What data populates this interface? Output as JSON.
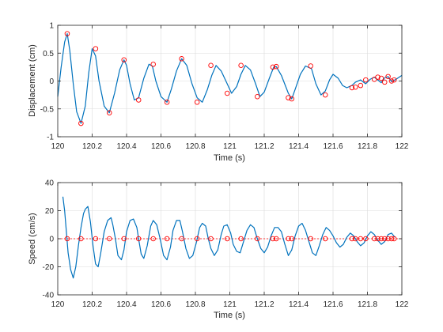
{
  "colors": {
    "line": "#0072bd",
    "marker": "#ff0000",
    "zero_line": "#ff0000",
    "grid": "#dcdcdc",
    "axis": "#262626",
    "background": "#ffffff"
  },
  "chart_data": [
    {
      "type": "line",
      "xlabel": "Time (s)",
      "ylabel": "Displacement (cm)",
      "xlim": [
        120,
        122
      ],
      "ylim": [
        -1,
        1
      ],
      "grid": true,
      "x_ticks": [
        120,
        120.2,
        120.4,
        120.6,
        120.8,
        121,
        121.2,
        121.4,
        121.6,
        121.8,
        122
      ],
      "x_tick_labels": [
        "120",
        "120.2",
        "120.4",
        "120.6",
        "120.8",
        "121",
        "121.2",
        "121.4",
        "121.6",
        "121.8",
        "122"
      ],
      "y_ticks": [
        -1,
        -0.5,
        0,
        0.5,
        1
      ],
      "y_tick_labels": [
        "-1",
        "-0.5",
        "0",
        "0.5",
        "1"
      ],
      "series": [
        {
          "style": "line",
          "x": [
            120.0,
            120.02,
            120.04,
            120.055,
            120.07,
            120.09,
            120.11,
            120.135,
            120.16,
            120.18,
            120.2,
            120.22,
            120.24,
            120.27,
            120.3,
            120.33,
            120.36,
            120.385,
            120.4,
            120.42,
            120.445,
            120.47,
            120.5,
            120.53,
            120.55,
            120.57,
            120.6,
            120.635,
            120.66,
            120.69,
            120.72,
            120.75,
            120.78,
            120.81,
            120.84,
            120.87,
            120.895,
            120.92,
            120.95,
            120.985,
            121.01,
            121.04,
            121.065,
            121.09,
            121.12,
            121.15,
            121.175,
            121.2,
            121.23,
            121.255,
            121.27,
            121.3,
            121.34,
            121.36,
            121.38,
            121.41,
            121.44,
            121.475,
            121.5,
            121.53,
            121.555,
            121.58,
            121.6,
            121.63,
            121.655,
            121.68,
            121.71,
            121.73,
            121.76,
            121.79,
            121.815,
            121.84,
            121.86,
            121.88,
            121.9,
            121.92,
            121.94,
            121.96,
            121.98,
            122.0
          ],
          "y": [
            -0.28,
            0.25,
            0.7,
            0.85,
            0.55,
            -0.05,
            -0.55,
            -0.76,
            -0.45,
            0.15,
            0.58,
            0.45,
            0.0,
            -0.45,
            -0.57,
            -0.22,
            0.2,
            0.38,
            0.28,
            -0.05,
            -0.34,
            -0.3,
            0.05,
            0.3,
            0.27,
            0.0,
            -0.28,
            -0.38,
            -0.15,
            0.18,
            0.4,
            0.28,
            -0.05,
            -0.3,
            -0.38,
            -0.15,
            0.1,
            0.28,
            0.18,
            -0.05,
            -0.22,
            -0.1,
            0.12,
            0.28,
            0.2,
            -0.05,
            -0.28,
            -0.2,
            0.05,
            0.25,
            0.26,
            0.1,
            -0.22,
            -0.32,
            -0.15,
            0.12,
            0.27,
            0.22,
            -0.05,
            -0.25,
            -0.18,
            0.02,
            0.12,
            0.05,
            -0.08,
            -0.12,
            -0.08,
            -0.02,
            0.02,
            -0.05,
            0.03,
            0.07,
            0.02,
            -0.03,
            0.06,
            0.08,
            -0.01,
            0.02,
            0.06,
            0.1
          ]
        },
        {
          "style": "markers",
          "x": [
            120.055,
            120.135,
            120.22,
            120.3,
            120.385,
            120.47,
            120.555,
            120.635,
            120.72,
            120.81,
            120.89,
            120.985,
            121.065,
            121.16,
            121.25,
            121.27,
            121.34,
            121.36,
            121.47,
            121.555,
            121.71,
            121.73,
            121.76,
            121.79,
            121.84,
            121.86,
            121.88,
            121.9,
            121.92,
            121.94,
            121.955
          ],
          "y": [
            0.85,
            -0.76,
            0.58,
            -0.57,
            0.38,
            -0.34,
            0.3,
            -0.38,
            0.4,
            -0.38,
            0.28,
            -0.22,
            0.28,
            -0.28,
            0.25,
            0.26,
            -0.3,
            -0.32,
            0.27,
            -0.25,
            -0.12,
            -0.11,
            -0.08,
            0.02,
            0.03,
            0.07,
            0.05,
            -0.02,
            0.08,
            0.0,
            0.02
          ]
        }
      ]
    },
    {
      "type": "line",
      "xlabel": "Time (s)",
      "ylabel": "Speed (cm/s)",
      "xlim": [
        120,
        122
      ],
      "ylim": [
        -40,
        40
      ],
      "grid": true,
      "x_ticks": [
        120,
        120.2,
        120.4,
        120.6,
        120.8,
        121,
        121.2,
        121.4,
        121.6,
        121.8,
        122
      ],
      "x_tick_labels": [
        "120",
        "120.2",
        "120.4",
        "120.6",
        "120.8",
        "121",
        "121.2",
        "121.4",
        "121.6",
        "121.8",
        "122"
      ],
      "y_ticks": [
        -40,
        -20,
        0,
        20,
        40
      ],
      "y_tick_labels": [
        "-40",
        "-20",
        "0",
        "20",
        "40"
      ],
      "series": [
        {
          "style": "line",
          "x": [
            120.03,
            120.04,
            120.05,
            120.06,
            120.075,
            120.09,
            120.105,
            120.12,
            120.135,
            120.15,
            120.16,
            120.175,
            120.19,
            120.205,
            120.22,
            120.235,
            120.25,
            120.27,
            120.29,
            120.31,
            120.32,
            120.335,
            120.35,
            120.37,
            120.385,
            120.4,
            120.42,
            120.44,
            120.46,
            120.47,
            120.485,
            120.5,
            120.52,
            120.54,
            120.555,
            120.575,
            120.595,
            120.615,
            120.635,
            120.655,
            120.67,
            120.69,
            120.71,
            120.725,
            120.745,
            120.765,
            120.785,
            120.805,
            120.825,
            120.84,
            120.86,
            120.875,
            120.89,
            120.91,
            120.93,
            120.95,
            120.965,
            120.985,
            121.005,
            121.02,
            121.04,
            121.06,
            121.08,
            121.1,
            121.12,
            121.14,
            121.16,
            121.18,
            121.2,
            121.22,
            121.24,
            121.26,
            121.28,
            121.3,
            121.32,
            121.34,
            121.36,
            121.38,
            121.4,
            121.42,
            121.44,
            121.46,
            121.48,
            121.5,
            121.52,
            121.54,
            121.56,
            121.58,
            121.6,
            121.62,
            121.64,
            121.66,
            121.68,
            121.7,
            121.72,
            121.74,
            121.76,
            121.78,
            121.8,
            121.82,
            121.84,
            121.86,
            121.88,
            121.9,
            121.92,
            121.94,
            121.96
          ],
          "y": [
            30,
            20,
            5,
            -10,
            -22,
            -28,
            -20,
            -5,
            8,
            18,
            21,
            23,
            12,
            -5,
            -18,
            -20,
            -10,
            5,
            13,
            15,
            10,
            0,
            -12,
            -15,
            -8,
            5,
            13,
            14,
            8,
            0,
            -11,
            -14,
            -5,
            9,
            13,
            10,
            0,
            -12,
            -15,
            -6,
            6,
            13,
            13,
            5,
            -7,
            -14,
            -12,
            -3,
            8,
            11,
            9,
            0,
            -7,
            -12,
            -8,
            3,
            9,
            10,
            4,
            -4,
            -9,
            -10,
            -2,
            6,
            10,
            8,
            0,
            -7,
            -10,
            -6,
            2,
            8,
            8,
            5,
            -4,
            -12,
            -8,
            2,
            9,
            11,
            6,
            -2,
            -10,
            -12,
            -5,
            3,
            8,
            6,
            2,
            -3,
            -6,
            -4,
            1,
            4,
            2,
            -2,
            -5,
            -3,
            2,
            5,
            3,
            -1,
            -4,
            -2,
            3,
            4,
            1
          ]
        },
        {
          "style": "markers",
          "x": [
            120.055,
            120.135,
            120.22,
            120.3,
            120.385,
            120.47,
            120.555,
            120.635,
            120.72,
            120.81,
            120.89,
            120.985,
            121.065,
            121.16,
            121.25,
            121.27,
            121.34,
            121.36,
            121.47,
            121.555,
            121.71,
            121.73,
            121.76,
            121.79,
            121.84,
            121.86,
            121.88,
            121.9,
            121.92,
            121.94,
            121.955
          ],
          "y": [
            0,
            0,
            0,
            0,
            0,
            0,
            0,
            0,
            0,
            0,
            0,
            0,
            0,
            0,
            0,
            0,
            0,
            0,
            0,
            0,
            0,
            0,
            0,
            0,
            0,
            0,
            0,
            0,
            0,
            0,
            0
          ]
        },
        {
          "style": "dashed-zero",
          "x": [
            120,
            122
          ],
          "y": [
            0,
            0
          ]
        }
      ]
    }
  ]
}
